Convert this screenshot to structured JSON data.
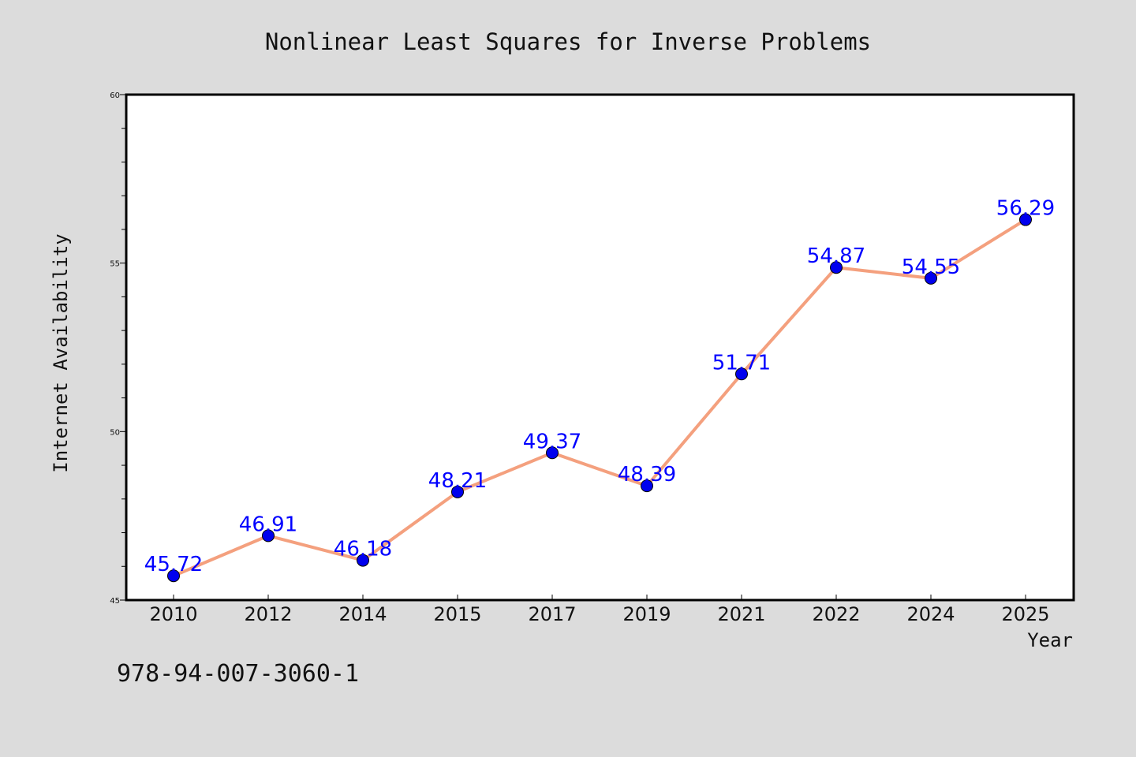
{
  "chart_data": {
    "type": "line",
    "title": "Nonlinear Least Squares for Inverse Problems",
    "xlabel": "Year",
    "ylabel": "Internet Availability",
    "categories": [
      "2010",
      "2012",
      "2014",
      "2015",
      "2017",
      "2019",
      "2021",
      "2022",
      "2024",
      "2025"
    ],
    "series": [
      {
        "values": [
          45.72,
          46.91,
          46.18,
          48.21,
          49.37,
          48.39,
          51.71,
          54.87,
          54.55,
          56.29
        ],
        "labels": [
          "45.72",
          "46.91",
          "46.18",
          "48.21",
          "49.37",
          "48.39",
          "51.71",
          "54.87",
          "54.55",
          "56.29"
        ],
        "line_color": "#f4a07e",
        "marker_color": "#0000ee"
      }
    ],
    "ylim": [
      45,
      60
    ],
    "yticks": [
      "45",
      "50",
      "55",
      "60"
    ],
    "grid": false,
    "legend": false
  },
  "footer": {
    "isbn": "978-94-007-3060-1"
  },
  "colors": {
    "background": "#dcdcdc",
    "plot_background": "#ffffff",
    "label_color": "#0000ff"
  }
}
